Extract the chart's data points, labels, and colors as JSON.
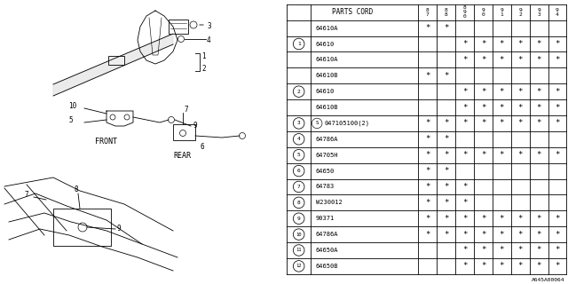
{
  "watermark": "A645A00064",
  "table": {
    "header_label": "PARTS CORD",
    "year_cols": [
      "8\n7",
      "8\n8",
      "8\n9\n0",
      "9\n0",
      "9\n1",
      "9\n2",
      "9\n3",
      "9\n4"
    ],
    "rows": [
      {
        "ref": "",
        "part": "64610A",
        "marks": [
          1,
          1,
          0,
          0,
          0,
          0,
          0,
          0
        ]
      },
      {
        "ref": "1",
        "part": "64610",
        "marks": [
          0,
          0,
          1,
          1,
          1,
          1,
          1,
          1
        ]
      },
      {
        "ref": "",
        "part": "64610A",
        "marks": [
          0,
          0,
          1,
          1,
          1,
          1,
          1,
          1
        ]
      },
      {
        "ref": "",
        "part": "64610B",
        "marks": [
          1,
          1,
          0,
          0,
          0,
          0,
          0,
          0
        ]
      },
      {
        "ref": "2",
        "part": "64610",
        "marks": [
          0,
          0,
          1,
          1,
          1,
          1,
          1,
          1
        ]
      },
      {
        "ref": "",
        "part": "64610B",
        "marks": [
          0,
          0,
          1,
          1,
          1,
          1,
          1,
          1
        ]
      },
      {
        "ref": "3",
        "part": "S047105100(2)",
        "marks": [
          1,
          1,
          1,
          1,
          1,
          1,
          1,
          1
        ]
      },
      {
        "ref": "4",
        "part": "64786A",
        "marks": [
          1,
          1,
          0,
          0,
          0,
          0,
          0,
          0
        ]
      },
      {
        "ref": "5",
        "part": "64705H",
        "marks": [
          1,
          1,
          1,
          1,
          1,
          1,
          1,
          1
        ]
      },
      {
        "ref": "6",
        "part": "64650",
        "marks": [
          1,
          1,
          0,
          0,
          0,
          0,
          0,
          0
        ]
      },
      {
        "ref": "7",
        "part": "64783",
        "marks": [
          1,
          1,
          1,
          0,
          0,
          0,
          0,
          0
        ]
      },
      {
        "ref": "8",
        "part": "W230012",
        "marks": [
          1,
          1,
          1,
          0,
          0,
          0,
          0,
          0
        ]
      },
      {
        "ref": "9",
        "part": "90371",
        "marks": [
          1,
          1,
          1,
          1,
          1,
          1,
          1,
          1
        ]
      },
      {
        "ref": "10",
        "part": "64786A",
        "marks": [
          1,
          1,
          1,
          1,
          1,
          1,
          1,
          1
        ]
      },
      {
        "ref": "11",
        "part": "64650A",
        "marks": [
          0,
          0,
          1,
          1,
          1,
          1,
          1,
          1
        ]
      },
      {
        "ref": "12",
        "part": "64650B",
        "marks": [
          0,
          0,
          1,
          1,
          1,
          1,
          1,
          1
        ]
      }
    ]
  },
  "bg_color": "#ffffff",
  "line_color": "#000000",
  "text_color": "#000000"
}
